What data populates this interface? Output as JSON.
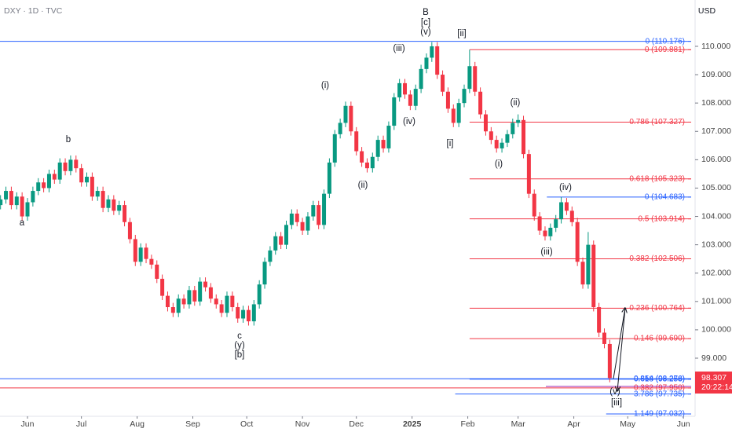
{
  "header": "DXY · 1D · TVC",
  "currency": "USD",
  "chart_data": {
    "type": "candlestick",
    "up_color": "#089981",
    "down_color": "#f23645",
    "xlim": [
      -15.3,
      369.3
    ],
    "ylim": [
      96.95,
      111.634
    ],
    "xticks": [
      {
        "value": 0,
        "label": "Jun"
      },
      {
        "value": 30,
        "label": "Jul"
      },
      {
        "value": 61,
        "label": "Aug"
      },
      {
        "value": 92,
        "label": "Sep"
      },
      {
        "value": 122,
        "label": "Oct"
      },
      {
        "value": 153,
        "label": "Nov"
      },
      {
        "value": 183,
        "label": "Dec"
      },
      {
        "value": 214,
        "label": "2025"
      },
      {
        "value": 245,
        "label": "Feb"
      },
      {
        "value": 273,
        "label": "Mar"
      },
      {
        "value": 304,
        "label": "Apr"
      },
      {
        "value": 334,
        "label": "May"
      },
      {
        "value": 365,
        "label": "Jun"
      }
    ],
    "yticks": [
      {
        "value": 99,
        "label": "99.000"
      },
      {
        "value": 100,
        "label": "100.000"
      },
      {
        "value": 101,
        "label": "101.000"
      },
      {
        "value": 102,
        "label": "102.000"
      },
      {
        "value": 103,
        "label": "103.000"
      },
      {
        "value": 104,
        "label": "104.000"
      },
      {
        "value": 105,
        "label": "105.000"
      },
      {
        "value": 106,
        "label": "106.000"
      },
      {
        "value": 107,
        "label": "107.000"
      },
      {
        "value": 108,
        "label": "108.000"
      },
      {
        "value": 109,
        "label": "109.000"
      },
      {
        "value": 110,
        "label": "110.000"
      }
    ],
    "candles": [
      [
        -15,
        104.4,
        104.75,
        104.25,
        104.6
      ],
      [
        -12,
        104.6,
        105.05,
        104.45,
        104.9
      ],
      [
        -9,
        104.9,
        105.05,
        104.25,
        104.4
      ],
      [
        -6,
        104.4,
        104.85,
        104.25,
        104.7
      ],
      [
        -3,
        104.7,
        104.85,
        103.85,
        104.0
      ],
      [
        0,
        104.0,
        104.65,
        103.85,
        104.5
      ],
      [
        3,
        104.5,
        105.05,
        104.35,
        104.9
      ],
      [
        6,
        104.9,
        105.35,
        104.75,
        105.2
      ],
      [
        9,
        105.2,
        105.35,
        104.85,
        105.0
      ],
      [
        12,
        105.0,
        105.65,
        104.85,
        105.5
      ],
      [
        15,
        105.5,
        105.65,
        105.15,
        105.3
      ],
      [
        18,
        105.3,
        106.05,
        105.15,
        105.9
      ],
      [
        21,
        105.9,
        106.05,
        105.45,
        105.6
      ],
      [
        24,
        105.6,
        106.15,
        105.45,
        106.0
      ],
      [
        27,
        106.0,
        106.15,
        105.55,
        105.7
      ],
      [
        30,
        105.7,
        105.85,
        105.05,
        105.2
      ],
      [
        33,
        105.2,
        105.55,
        105.05,
        105.4
      ],
      [
        36,
        105.4,
        105.55,
        104.55,
        104.7
      ],
      [
        39,
        104.7,
        105.05,
        104.55,
        104.9
      ],
      [
        42,
        104.9,
        105.05,
        104.15,
        104.3
      ],
      [
        45,
        104.3,
        104.75,
        104.15,
        104.6
      ],
      [
        48,
        104.6,
        104.75,
        104.05,
        104.2
      ],
      [
        51,
        104.2,
        104.55,
        104.05,
        104.4
      ],
      [
        54,
        104.4,
        104.55,
        103.65,
        103.8
      ],
      [
        57,
        103.8,
        103.95,
        103.05,
        103.2
      ],
      [
        60,
        103.2,
        103.35,
        102.25,
        102.4
      ],
      [
        63,
        102.4,
        103.05,
        102.25,
        102.9
      ],
      [
        66,
        102.9,
        103.05,
        102.35,
        102.5
      ],
      [
        69,
        102.5,
        102.65,
        102.15,
        102.3
      ],
      [
        72,
        102.3,
        102.45,
        101.65,
        101.8
      ],
      [
        75,
        101.8,
        101.95,
        101.05,
        101.2
      ],
      [
        78,
        101.2,
        101.35,
        100.65,
        100.8
      ],
      [
        81,
        100.8,
        100.95,
        100.45,
        100.6
      ],
      [
        84,
        100.6,
        101.25,
        100.45,
        101.1
      ],
      [
        87,
        101.1,
        101.25,
        100.75,
        100.9
      ],
      [
        90,
        100.9,
        101.55,
        100.75,
        101.4
      ],
      [
        93,
        101.4,
        101.55,
        100.85,
        101.0
      ],
      [
        96,
        101.0,
        101.85,
        100.85,
        101.7
      ],
      [
        99,
        101.7,
        101.85,
        101.35,
        101.5
      ],
      [
        102,
        101.5,
        101.65,
        100.95,
        101.1
      ],
      [
        105,
        101.1,
        101.25,
        100.75,
        100.9
      ],
      [
        108,
        100.9,
        101.05,
        100.45,
        100.6
      ],
      [
        111,
        100.6,
        101.35,
        100.45,
        101.2
      ],
      [
        114,
        101.2,
        101.35,
        100.65,
        100.8
      ],
      [
        117,
        100.8,
        100.95,
        100.25,
        100.4
      ],
      [
        120,
        100.4,
        100.85,
        100.25,
        100.7
      ],
      [
        123,
        100.7,
        100.85,
        100.15,
        100.3
      ],
      [
        126,
        100.3,
        101.05,
        100.15,
        100.9
      ],
      [
        129,
        100.9,
        101.75,
        100.75,
        101.6
      ],
      [
        132,
        101.6,
        102.55,
        101.45,
        102.4
      ],
      [
        135,
        102.4,
        102.95,
        102.25,
        102.8
      ],
      [
        138,
        102.8,
        103.45,
        102.65,
        103.3
      ],
      [
        141,
        103.3,
        103.45,
        102.85,
        103.0
      ],
      [
        144,
        103.0,
        103.85,
        102.85,
        103.7
      ],
      [
        147,
        103.7,
        104.25,
        103.55,
        104.1
      ],
      [
        150,
        104.1,
        104.25,
        103.65,
        103.8
      ],
      [
        153,
        103.8,
        103.95,
        103.35,
        103.5
      ],
      [
        156,
        103.5,
        104.15,
        103.35,
        104.0
      ],
      [
        159,
        104.0,
        104.55,
        103.85,
        104.4
      ],
      [
        162,
        104.4,
        104.55,
        103.55,
        103.7
      ],
      [
        165,
        103.7,
        104.95,
        103.55,
        104.8
      ],
      [
        168,
        104.8,
        106.05,
        104.65,
        105.9
      ],
      [
        171,
        105.9,
        107.05,
        105.75,
        106.9
      ],
      [
        174,
        106.9,
        107.45,
        106.75,
        107.3
      ],
      [
        177,
        107.3,
        108.05,
        107.15,
        107.9
      ],
      [
        180,
        107.9,
        108.05,
        106.85,
        107.0
      ],
      [
        183,
        107.0,
        107.15,
        106.15,
        106.3
      ],
      [
        186,
        106.3,
        106.45,
        105.75,
        105.9
      ],
      [
        189,
        105.9,
        106.05,
        105.55,
        105.7
      ],
      [
        192,
        105.7,
        106.25,
        105.55,
        106.1
      ],
      [
        195,
        106.1,
        106.85,
        105.95,
        106.7
      ],
      [
        198,
        106.7,
        106.85,
        106.25,
        106.4
      ],
      [
        201,
        106.4,
        107.35,
        106.25,
        107.2
      ],
      [
        204,
        107.2,
        108.35,
        107.05,
        108.2
      ],
      [
        207,
        108.2,
        108.85,
        108.05,
        108.7
      ],
      [
        210,
        108.7,
        108.85,
        108.15,
        108.3
      ],
      [
        213,
        108.3,
        108.45,
        107.75,
        107.9
      ],
      [
        216,
        107.9,
        108.65,
        107.75,
        108.5
      ],
      [
        219,
        108.5,
        109.35,
        108.35,
        109.2
      ],
      [
        222,
        109.2,
        109.75,
        109.05,
        109.6
      ],
      [
        225,
        109.6,
        110.15,
        109.45,
        110.0
      ],
      [
        228,
        110.0,
        110.15,
        108.85,
        109.0
      ],
      [
        231,
        109.0,
        109.15,
        108.25,
        108.4
      ],
      [
        234,
        108.4,
        108.55,
        107.65,
        107.8
      ],
      [
        237,
        107.8,
        107.95,
        107.15,
        107.3
      ],
      [
        240,
        107.3,
        108.15,
        107.15,
        108.0
      ],
      [
        243,
        108.0,
        108.65,
        107.85,
        108.5
      ],
      [
        246,
        108.5,
        109.88,
        108.35,
        109.3
      ],
      [
        249,
        109.3,
        109.45,
        108.25,
        108.4
      ],
      [
        252,
        108.4,
        108.55,
        107.45,
        107.6
      ],
      [
        255,
        107.6,
        107.75,
        106.85,
        107.0
      ],
      [
        258,
        107.0,
        107.15,
        106.55,
        106.7
      ],
      [
        261,
        106.7,
        106.85,
        106.25,
        106.4
      ],
      [
        264,
        106.4,
        106.75,
        106.25,
        106.6
      ],
      [
        267,
        106.6,
        107.05,
        106.45,
        106.9
      ],
      [
        270,
        106.9,
        107.45,
        106.75,
        107.3
      ],
      [
        273,
        107.3,
        107.6,
        107.15,
        107.4
      ],
      [
        276,
        107.4,
        107.55,
        106.05,
        106.2
      ],
      [
        279,
        106.2,
        106.35,
        104.65,
        104.8
      ],
      [
        282,
        104.8,
        104.95,
        103.85,
        104.0
      ],
      [
        285,
        104.0,
        104.15,
        103.35,
        103.5
      ],
      [
        288,
        103.5,
        103.65,
        103.15,
        103.3
      ],
      [
        291,
        103.3,
        103.75,
        103.15,
        103.6
      ],
      [
        294,
        103.6,
        104.05,
        103.45,
        103.9
      ],
      [
        297,
        103.9,
        104.68,
        103.75,
        104.5
      ],
      [
        300,
        104.5,
        104.65,
        104.05,
        104.2
      ],
      [
        303,
        104.2,
        104.35,
        103.65,
        103.8
      ],
      [
        306,
        103.8,
        103.95,
        102.25,
        102.4
      ],
      [
        309,
        102.4,
        102.55,
        101.45,
        101.6
      ],
      [
        312,
        101.6,
        103.45,
        101.45,
        103.0
      ],
      [
        315,
        103.0,
        103.15,
        100.65,
        100.8
      ],
      [
        318,
        100.8,
        100.95,
        99.75,
        99.9
      ],
      [
        321,
        99.9,
        100.05,
        99.35,
        99.5
      ],
      [
        324,
        99.5,
        99.65,
        98.15,
        98.3
      ]
    ],
    "levels": [
      {
        "label": "0 (110.176)",
        "value": 110.176,
        "x0": -15.3,
        "color": "#2962ff"
      },
      {
        "label": "0 (109.881)",
        "value": 109.881,
        "x0": 246,
        "color": "#f23645"
      },
      {
        "label": "0.786 (107.327)",
        "value": 107.327,
        "x0": 246,
        "color": "#f23645"
      },
      {
        "label": "0.618 (105.323)",
        "value": 105.323,
        "x0": 246,
        "color": "#f23645"
      },
      {
        "label": "0 (104.683)",
        "value": 104.683,
        "x0": 289,
        "color": "#2962ff"
      },
      {
        "label": "0.5 (103.914)",
        "value": 103.914,
        "x0": 246,
        "color": "#f23645"
      },
      {
        "label": "0.382 (102.506)",
        "value": 102.506,
        "x0": 246,
        "color": "#f23645"
      },
      {
        "label": "0.236 (100.764)",
        "value": 100.764,
        "x0": 246,
        "color": "#f23645"
      },
      {
        "label": "0.146 (99.690)",
        "value": 99.69,
        "x0": 246,
        "color": "#f23645"
      },
      {
        "label": "0.854 (98.276)",
        "value": 98.276,
        "x0": -15.3,
        "color": "#2962ff"
      },
      {
        "label": "0.618 (98.258)",
        "value": 98.258,
        "x0": 246,
        "color": "#2962ff"
      },
      {
        "label": "0.382 (97.950)",
        "value": 97.95,
        "x0": -15.3,
        "color": "#f23645"
      },
      {
        "label": "3.786 (97.735)",
        "value": 97.735,
        "x0": 238,
        "color": "#2962ff"
      },
      {
        "label": "1.149 (97.032)",
        "value": 97.032,
        "x0": 322,
        "color": "#2962ff"
      }
    ],
    "annotations": [
      "a",
      "b",
      "c",
      "(y)",
      "[b]",
      "(i)",
      "(ii)",
      "(iii)",
      "(iv)",
      "B",
      "[c]",
      "(v)",
      "[i]",
      "[ii]",
      "(i)",
      "(ii)",
      "(iii)",
      "(iv)",
      "(v)",
      "[iii]"
    ],
    "last_price": 98.307,
    "countdown": "20:22:14"
  }
}
